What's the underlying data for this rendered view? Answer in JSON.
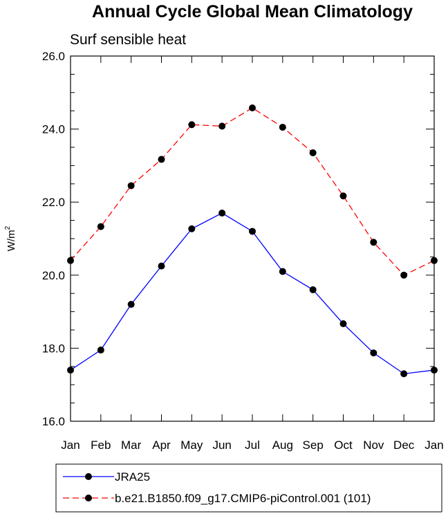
{
  "chart_data": {
    "type": "line",
    "title": "Annual Cycle Global Mean Climatology",
    "subtitle": "Surf sensible heat",
    "ylabel": "W/m",
    "ylabel_sup": "2",
    "xlabel": "",
    "categories": [
      "Jan",
      "Feb",
      "Mar",
      "Apr",
      "May",
      "Jun",
      "Jul",
      "Aug",
      "Sep",
      "Oct",
      "Nov",
      "Dec",
      "Jan"
    ],
    "ylim": [
      16.0,
      26.0
    ],
    "yticks": [
      "16.0",
      "18.0",
      "20.0",
      "22.0",
      "24.0",
      "26.0"
    ],
    "grid": false,
    "legend_position": "bottom",
    "series": [
      {
        "name": "JRA25",
        "color": "#0000ff",
        "dash": "solid",
        "values": [
          17.4,
          17.95,
          19.2,
          20.25,
          21.27,
          21.7,
          21.2,
          20.1,
          19.6,
          18.67,
          17.87,
          17.3,
          17.4
        ]
      },
      {
        "name": "b.e21.B1850.f09_g17.CMIP6-piControl.001 (101)",
        "color": "#ff0000",
        "dash": "dashed",
        "values": [
          20.4,
          21.33,
          22.45,
          23.17,
          24.12,
          24.08,
          24.58,
          24.05,
          23.35,
          22.17,
          20.9,
          20.0,
          20.4
        ]
      }
    ]
  }
}
